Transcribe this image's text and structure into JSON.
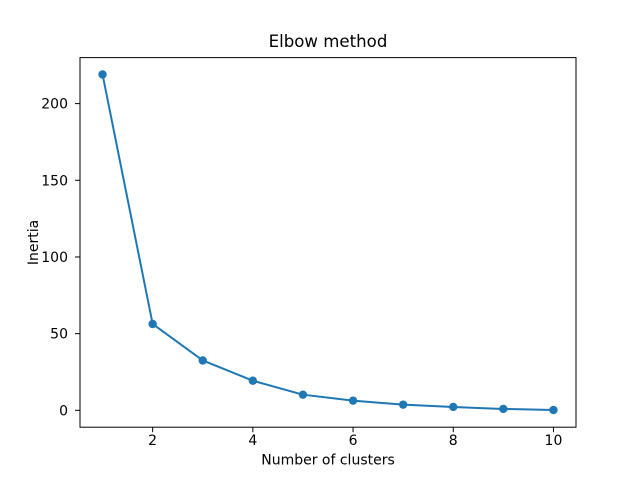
{
  "figure": {
    "background_color": "#ffffff"
  },
  "chart_data": {
    "type": "line",
    "title": "Elbow method",
    "xlabel": "Number of clusters",
    "ylabel": "Inertia",
    "x": [
      1,
      2,
      3,
      4,
      5,
      6,
      7,
      8,
      9,
      10
    ],
    "y": [
      219.0,
      56.3,
      32.5,
      19.3,
      10.2,
      6.3,
      3.7,
      2.2,
      0.9,
      0.2
    ],
    "xticks": [
      2,
      4,
      6,
      8,
      10
    ],
    "yticks": [
      0,
      50,
      100,
      150,
      200
    ],
    "xlim": [
      0.55,
      10.45
    ],
    "ylim": [
      -11,
      230
    ],
    "line_color": "#1f77b4",
    "marker": "circle",
    "marker_color": "#1f77b4",
    "axis_color": "#000000",
    "text_color": "#000000",
    "grid": false,
    "legend": "none"
  }
}
